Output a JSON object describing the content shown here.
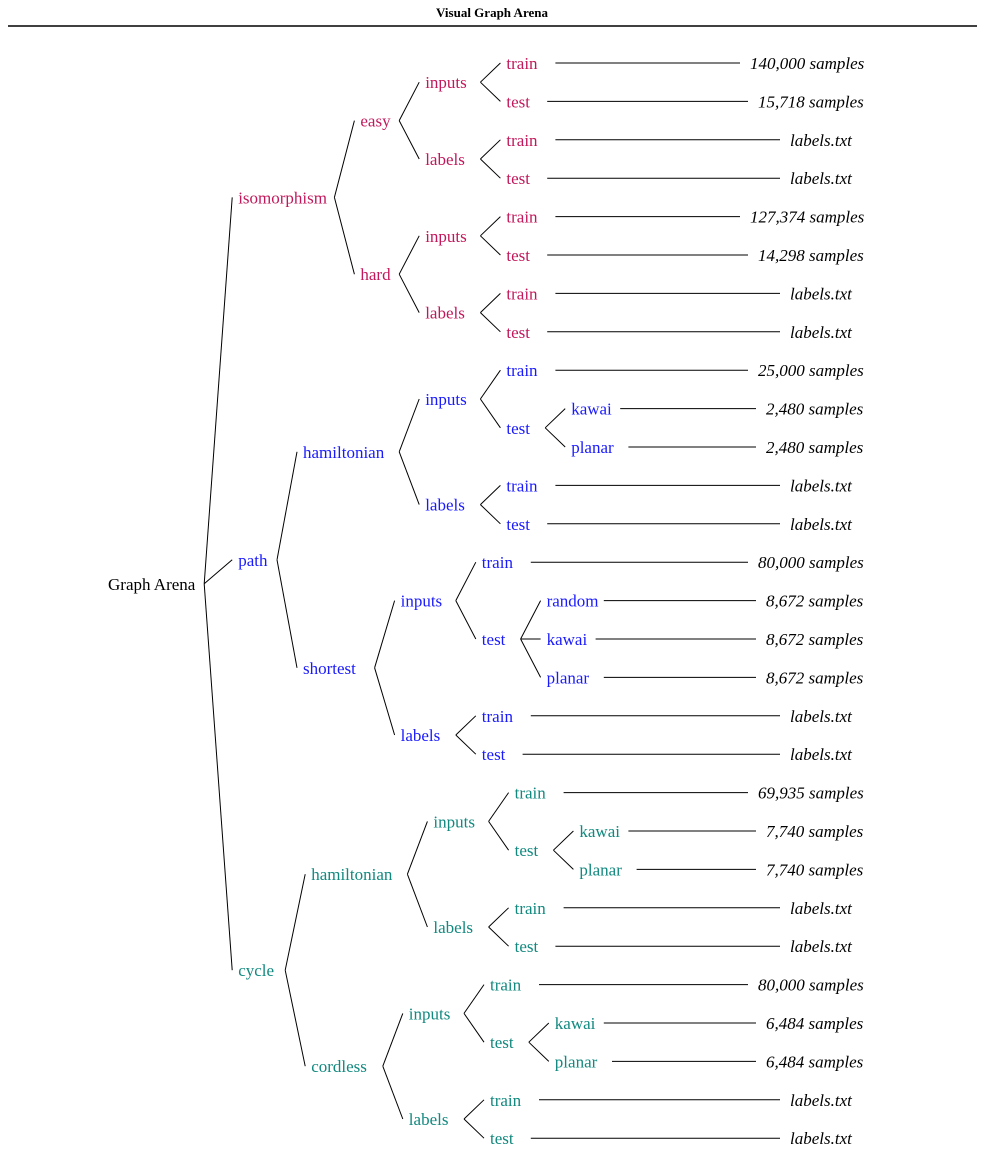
{
  "title": "Visual Graph Arena",
  "colors": {
    "isomorphism": "#c2185b",
    "path": "#1a1aff",
    "cycle": "#11897f",
    "root": "#000000",
    "leaf": "#000000"
  },
  "tree": {
    "label": "Graph Arena",
    "children": [
      {
        "label": "isomorphism",
        "group": "isomorphism",
        "children": [
          {
            "label": "easy",
            "children": [
              {
                "label": "inputs",
                "children": [
                  {
                    "label": "train",
                    "leaf": "140,000 samples"
                  },
                  {
                    "label": "test",
                    "leaf": "15,718 samples"
                  }
                ]
              },
              {
                "label": "labels",
                "children": [
                  {
                    "label": "train",
                    "leaf": "labels.txt"
                  },
                  {
                    "label": "test",
                    "leaf": "labels.txt"
                  }
                ]
              }
            ]
          },
          {
            "label": "hard",
            "children": [
              {
                "label": "inputs",
                "children": [
                  {
                    "label": "train",
                    "leaf": "127,374 samples"
                  },
                  {
                    "label": "test",
                    "leaf": "14,298 samples"
                  }
                ]
              },
              {
                "label": "labels",
                "children": [
                  {
                    "label": "train",
                    "leaf": "labels.txt"
                  },
                  {
                    "label": "test",
                    "leaf": "labels.txt"
                  }
                ]
              }
            ]
          }
        ]
      },
      {
        "label": "path",
        "group": "path",
        "children": [
          {
            "label": "hamiltonian",
            "children": [
              {
                "label": "inputs",
                "children": [
                  {
                    "label": "train",
                    "leaf": "25,000 samples"
                  },
                  {
                    "label": "test",
                    "children": [
                      {
                        "label": "kawai",
                        "leaf": "2,480 samples"
                      },
                      {
                        "label": "planar",
                        "leaf": "2,480 samples"
                      }
                    ]
                  }
                ]
              },
              {
                "label": "labels",
                "children": [
                  {
                    "label": "train",
                    "leaf": "labels.txt"
                  },
                  {
                    "label": "test",
                    "leaf": "labels.txt"
                  }
                ]
              }
            ]
          },
          {
            "label": "shortest",
            "children": [
              {
                "label": "inputs",
                "children": [
                  {
                    "label": "train",
                    "leaf": "80,000 samples"
                  },
                  {
                    "label": "test",
                    "children": [
                      {
                        "label": "random",
                        "leaf": "8,672 samples"
                      },
                      {
                        "label": "kawai",
                        "leaf": "8,672 samples"
                      },
                      {
                        "label": "planar",
                        "leaf": "8,672 samples"
                      }
                    ]
                  }
                ]
              },
              {
                "label": "labels",
                "children": [
                  {
                    "label": "train",
                    "leaf": "labels.txt"
                  },
                  {
                    "label": "test",
                    "leaf": "labels.txt"
                  }
                ]
              }
            ]
          }
        ]
      },
      {
        "label": "cycle",
        "group": "cycle",
        "children": [
          {
            "label": "hamiltonian",
            "children": [
              {
                "label": "inputs",
                "children": [
                  {
                    "label": "train",
                    "leaf": "69,935 samples"
                  },
                  {
                    "label": "test",
                    "children": [
                      {
                        "label": "kawai",
                        "leaf": "7,740 samples"
                      },
                      {
                        "label": "planar",
                        "leaf": "7,740 samples"
                      }
                    ]
                  }
                ]
              },
              {
                "label": "labels",
                "children": [
                  {
                    "label": "train",
                    "leaf": "labels.txt"
                  },
                  {
                    "label": "test",
                    "leaf": "labels.txt"
                  }
                ]
              }
            ]
          },
          {
            "label": "cordless",
            "children": [
              {
                "label": "inputs",
                "children": [
                  {
                    "label": "train",
                    "leaf": "80,000 samples"
                  },
                  {
                    "label": "test",
                    "children": [
                      {
                        "label": "kawai",
                        "leaf": "6,484 samples"
                      },
                      {
                        "label": "planar",
                        "leaf": "6,484 samples"
                      }
                    ]
                  }
                ]
              },
              {
                "label": "labels",
                "children": [
                  {
                    "label": "train",
                    "leaf": "labels.txt"
                  },
                  {
                    "label": "test",
                    "leaf": "labels.txt"
                  }
                ]
              }
            ]
          }
        ]
      }
    ]
  }
}
